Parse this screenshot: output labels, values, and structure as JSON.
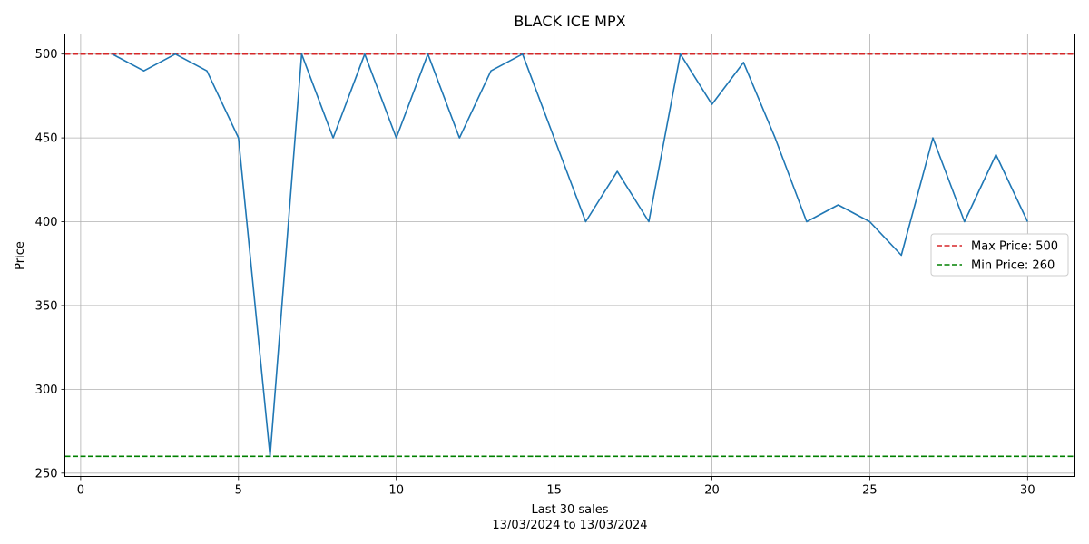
{
  "chart_data": {
    "type": "line",
    "title": "BLACK ICE MPX",
    "xlabel": "Last 30 sales",
    "xlabel_sub": "13/03/2024 to 13/03/2024",
    "ylabel": "Price",
    "xlim": [
      -0.5,
      31.5
    ],
    "ylim": [
      248,
      512
    ],
    "xticks": [
      0,
      5,
      10,
      15,
      20,
      25,
      30
    ],
    "yticks": [
      250,
      300,
      350,
      400,
      450,
      500
    ],
    "grid": true,
    "legend_position": "center-right",
    "series": [
      {
        "color": "#1f77b4",
        "x": [
          1,
          2,
          3,
          4,
          5,
          6,
          7,
          8,
          9,
          10,
          11,
          12,
          13,
          14,
          15,
          16,
          17,
          18,
          19,
          20,
          21,
          22,
          23,
          24,
          25,
          26,
          27,
          28,
          29,
          30
        ],
        "y": [
          500,
          490,
          500,
          490,
          450,
          260,
          500,
          450,
          500,
          450,
          500,
          450,
          490,
          500,
          450,
          400,
          430,
          400,
          500,
          470,
          495,
          450,
          400,
          410,
          400,
          380,
          450,
          400,
          440,
          400
        ]
      }
    ],
    "reference_lines": [
      {
        "name": "Max Price: 500",
        "value": 500,
        "color": "#d62728",
        "style": "dashed"
      },
      {
        "name": "Min Price: 260",
        "value": 260,
        "color": "#008000",
        "style": "dashed"
      }
    ]
  }
}
